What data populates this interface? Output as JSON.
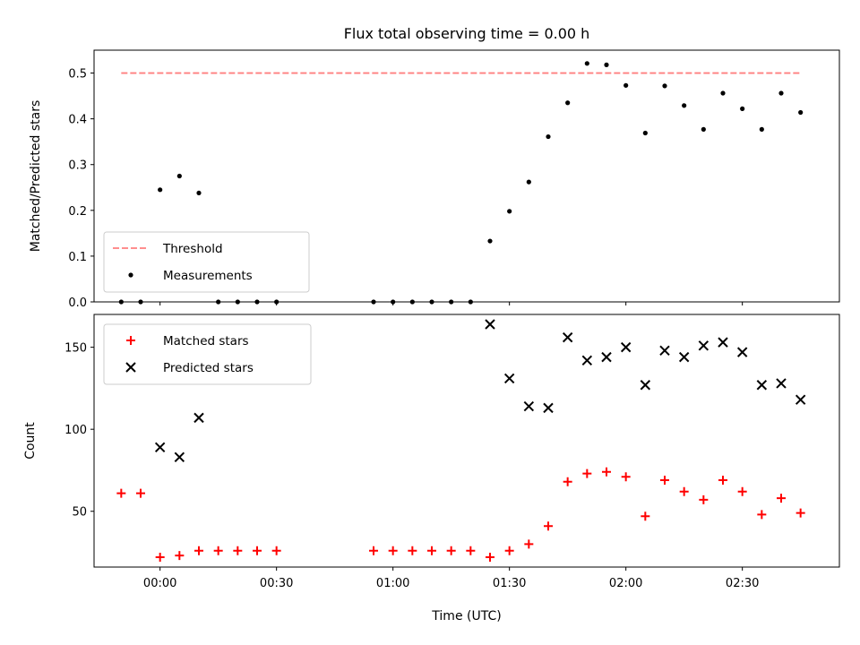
{
  "chart_data": {
    "type": "scatter",
    "title": "Flux total observing time = 0.00 h",
    "xlabel": "Time (UTC)",
    "x_ticks": [
      "00:00",
      "00:30",
      "01:00",
      "01:30",
      "02:00",
      "02:30"
    ],
    "x_range_min": [
      -17,
      175
    ],
    "panels": [
      {
        "ylabel": "Matched/Predicted stars",
        "ylim": [
          0,
          0.55
        ],
        "y_ticks": [
          0.0,
          0.1,
          0.2,
          0.3,
          0.4,
          0.5
        ],
        "legend": "lower-left",
        "series": [
          {
            "name": "Threshold",
            "kind": "dashed-line",
            "color": "#ff7f7f",
            "points": [
              [
                -10,
                0.5
              ],
              [
                165,
                0.5
              ]
            ]
          },
          {
            "name": "Measurements",
            "kind": "dot",
            "color": "#000000",
            "points": [
              [
                -10,
                0.0
              ],
              [
                -5,
                0.0
              ],
              [
                0,
                0.245
              ],
              [
                5,
                0.275
              ],
              [
                10,
                0.238
              ],
              [
                15,
                0.0
              ],
              [
                20,
                0.0
              ],
              [
                25,
                0.0
              ],
              [
                30,
                0.0
              ],
              [
                55,
                0.0
              ],
              [
                60,
                0.0
              ],
              [
                65,
                0.0
              ],
              [
                70,
                0.0
              ],
              [
                75,
                0.0
              ],
              [
                80,
                0.0
              ],
              [
                85,
                0.133
              ],
              [
                90,
                0.198
              ],
              [
                95,
                0.262
              ],
              [
                100,
                0.361
              ],
              [
                105,
                0.435
              ],
              [
                110,
                0.521
              ],
              [
                115,
                0.518
              ],
              [
                120,
                0.473
              ],
              [
                125,
                0.369
              ],
              [
                130,
                0.472
              ],
              [
                135,
                0.429
              ],
              [
                140,
                0.377
              ],
              [
                145,
                0.456
              ],
              [
                150,
                0.422
              ],
              [
                155,
                0.377
              ],
              [
                160,
                0.456
              ],
              [
                165,
                0.414
              ]
            ]
          }
        ]
      },
      {
        "ylabel": "Count",
        "ylim": [
          16,
          170
        ],
        "y_ticks": [
          50,
          100,
          150
        ],
        "legend": "upper-left",
        "series": [
          {
            "name": "Matched stars",
            "kind": "plus",
            "color": "#ff0000",
            "points": [
              [
                -10,
                61
              ],
              [
                -5,
                61
              ],
              [
                0,
                22
              ],
              [
                5,
                23
              ],
              [
                10,
                26
              ],
              [
                15,
                26
              ],
              [
                20,
                26
              ],
              [
                25,
                26
              ],
              [
                30,
                26
              ],
              [
                55,
                26
              ],
              [
                60,
                26
              ],
              [
                65,
                26
              ],
              [
                70,
                26
              ],
              [
                75,
                26
              ],
              [
                80,
                26
              ],
              [
                85,
                22
              ],
              [
                90,
                26
              ],
              [
                95,
                30
              ],
              [
                100,
                41
              ],
              [
                105,
                68
              ],
              [
                110,
                73
              ],
              [
                115,
                74
              ],
              [
                120,
                71
              ],
              [
                125,
                47
              ],
              [
                130,
                69
              ],
              [
                135,
                62
              ],
              [
                140,
                57
              ],
              [
                145,
                69
              ],
              [
                150,
                62
              ],
              [
                155,
                48
              ],
              [
                160,
                58
              ],
              [
                165,
                49
              ]
            ]
          },
          {
            "name": "Predicted stars",
            "kind": "x",
            "color": "#000000",
            "points": [
              [
                0,
                89
              ],
              [
                5,
                83
              ],
              [
                10,
                107
              ],
              [
                85,
                164
              ],
              [
                90,
                131
              ],
              [
                95,
                114
              ],
              [
                100,
                113
              ],
              [
                105,
                156
              ],
              [
                110,
                142
              ],
              [
                115,
                144
              ],
              [
                120,
                150
              ],
              [
                125,
                127
              ],
              [
                130,
                148
              ],
              [
                135,
                144
              ],
              [
                140,
                151
              ],
              [
                145,
                153
              ],
              [
                150,
                147
              ],
              [
                155,
                127
              ],
              [
                160,
                128
              ],
              [
                165,
                118
              ]
            ]
          }
        ]
      }
    ]
  }
}
